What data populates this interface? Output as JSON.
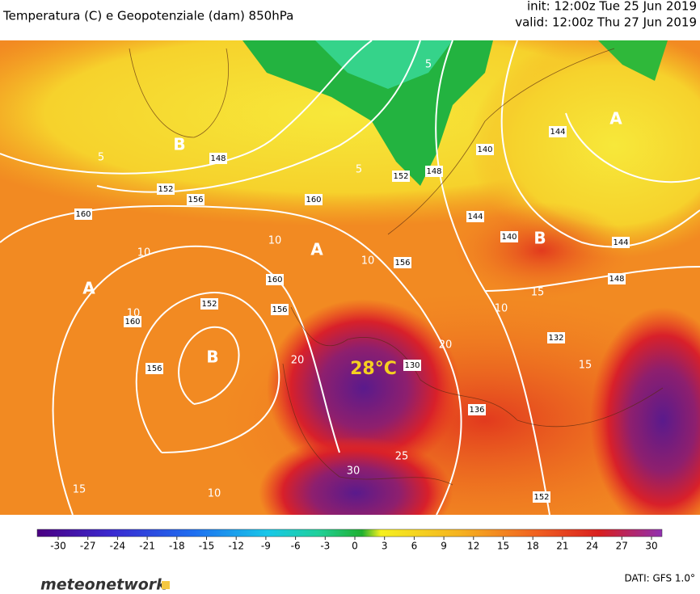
{
  "header": {
    "title": "Temperatura (C) e Geopotenziale (dam) 850hPa",
    "init": "init: 12:00z Tue 25 Jun 2019",
    "valid": "valid: 12:00z Thu 27 Jun 2019"
  },
  "map": {
    "pressure_labels": [
      "A",
      "B",
      "B",
      "A",
      "B",
      "A"
    ],
    "highlight": "28°C",
    "geopotential_labels": [
      "148",
      "152",
      "156",
      "160",
      "160",
      "152",
      "148",
      "140",
      "144",
      "144",
      "140",
      "144",
      "148",
      "156",
      "160",
      "156",
      "152",
      "160",
      "156",
      "130",
      "136",
      "152",
      "132"
    ],
    "temperature_labels": [
      "5",
      "10",
      "10",
      "10",
      "20",
      "20",
      "30",
      "15",
      "10",
      "25",
      "15",
      "15",
      "10",
      "5",
      "5",
      "10"
    ]
  },
  "colorbar": {
    "ticks": [
      -30,
      -27,
      -24,
      -21,
      -18,
      -15,
      -12,
      -9,
      -6,
      -3,
      0,
      3,
      6,
      9,
      12,
      15,
      18,
      21,
      24,
      27,
      30
    ]
  },
  "footer": {
    "brand": "meteonetwork",
    "source": "DATI: GFS 1.0°"
  }
}
